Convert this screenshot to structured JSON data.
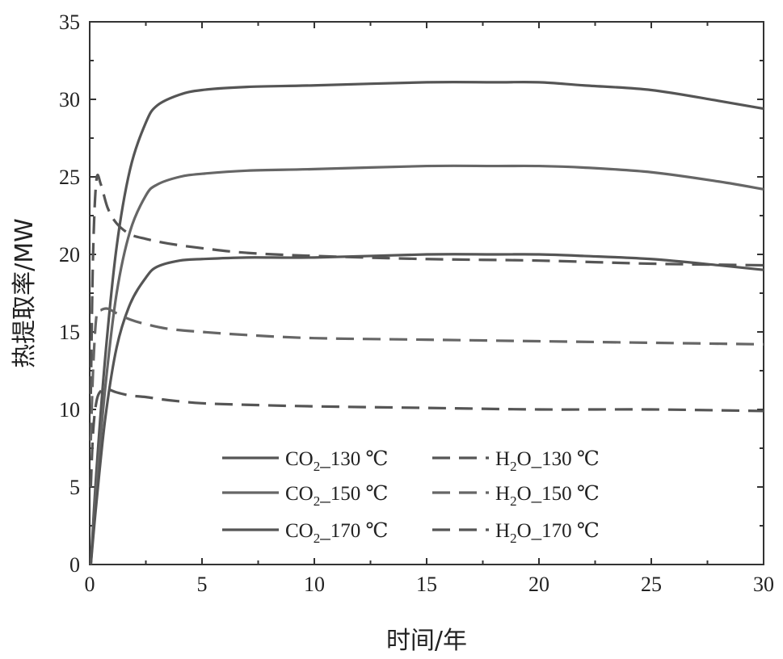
{
  "chart_data": {
    "type": "line",
    "xlabel": "时间/年",
    "ylabel": "热提取率/MW",
    "xlim": [
      0,
      30
    ],
    "ylim": [
      0,
      35
    ],
    "xticks": [
      0,
      5,
      10,
      15,
      20,
      25,
      30
    ],
    "yticks": [
      0,
      5,
      10,
      15,
      20,
      25,
      30,
      35
    ],
    "grid": false,
    "legend_position": "bottom-center",
    "series": [
      {
        "name_base": "CO",
        "name_sub": "2",
        "name_suffix": "_130 ℃",
        "style": "solid",
        "color": "#555555",
        "x": [
          0.05,
          0.3,
          0.7,
          1.2,
          1.8,
          2.5,
          3.0,
          4.0,
          5.0,
          7.0,
          10.0,
          15.0,
          18.0,
          20.0,
          22.0,
          25.0,
          28.0,
          30.0
        ],
        "y": [
          0.0,
          6.0,
          13.5,
          20.5,
          25.5,
          28.5,
          29.6,
          30.3,
          30.6,
          30.8,
          30.9,
          31.1,
          31.1,
          31.1,
          30.9,
          30.6,
          29.9,
          29.4
        ]
      },
      {
        "name_base": "CO",
        "name_sub": "2",
        "name_suffix": "_150 ℃",
        "style": "solid",
        "color": "#666666",
        "x": [
          0.05,
          0.3,
          0.7,
          1.2,
          1.8,
          2.5,
          3.0,
          4.0,
          5.0,
          7.0,
          10.0,
          15.0,
          18.0,
          20.0,
          22.0,
          25.0,
          28.0,
          30.0
        ],
        "y": [
          0.0,
          5.0,
          11.5,
          17.5,
          21.5,
          23.8,
          24.5,
          25.0,
          25.2,
          25.4,
          25.5,
          25.7,
          25.7,
          25.7,
          25.6,
          25.3,
          24.7,
          24.2
        ]
      },
      {
        "name_base": "CO",
        "name_sub": "2",
        "name_suffix": "_170 ℃",
        "style": "solid",
        "color": "#555555",
        "x": [
          0.05,
          0.3,
          0.7,
          1.2,
          1.8,
          2.5,
          3.0,
          4.0,
          5.0,
          7.0,
          10.0,
          15.0,
          18.0,
          20.0,
          22.0,
          25.0,
          28.0,
          30.0
        ],
        "y": [
          0.0,
          4.0,
          9.5,
          14.0,
          16.8,
          18.5,
          19.2,
          19.6,
          19.7,
          19.8,
          19.8,
          20.0,
          20.0,
          20.0,
          19.9,
          19.7,
          19.3,
          19.0
        ]
      },
      {
        "name_base": "H",
        "name_sub": "2",
        "name_suffix": "O_130 ℃",
        "style": "dashed",
        "color": "#555555",
        "x": [
          0.05,
          0.15,
          0.3,
          0.5,
          0.8,
          1.2,
          1.8,
          2.5,
          3.5,
          5.0,
          7.0,
          10.0,
          15.0,
          20.0,
          25.0,
          30.0
        ],
        "y": [
          11.0,
          20.0,
          24.8,
          24.5,
          23.0,
          22.0,
          21.3,
          21.0,
          20.7,
          20.4,
          20.1,
          19.9,
          19.7,
          19.6,
          19.4,
          19.3
        ]
      },
      {
        "name_base": "H",
        "name_sub": "2",
        "name_suffix": "O_150 ℃",
        "style": "dashed",
        "color": "#666666",
        "x": [
          0.05,
          0.15,
          0.3,
          0.5,
          0.8,
          1.2,
          1.8,
          2.5,
          3.5,
          5.0,
          7.0,
          10.0,
          15.0,
          20.0,
          25.0,
          30.0
        ],
        "y": [
          8.0,
          12.5,
          16.0,
          16.4,
          16.5,
          16.2,
          15.8,
          15.5,
          15.2,
          15.0,
          14.8,
          14.6,
          14.5,
          14.4,
          14.3,
          14.2
        ]
      },
      {
        "name_base": "H",
        "name_sub": "2",
        "name_suffix": "O_170 ℃",
        "style": "dashed",
        "color": "#555555",
        "x": [
          0.05,
          0.15,
          0.3,
          0.5,
          0.8,
          1.2,
          1.8,
          2.5,
          3.5,
          5.0,
          7.0,
          10.0,
          15.0,
          20.0,
          25.0,
          30.0
        ],
        "y": [
          5.0,
          8.5,
          10.5,
          11.2,
          11.3,
          11.1,
          10.9,
          10.8,
          10.6,
          10.4,
          10.3,
          10.2,
          10.1,
          10.0,
          10.0,
          9.9
        ]
      }
    ]
  }
}
